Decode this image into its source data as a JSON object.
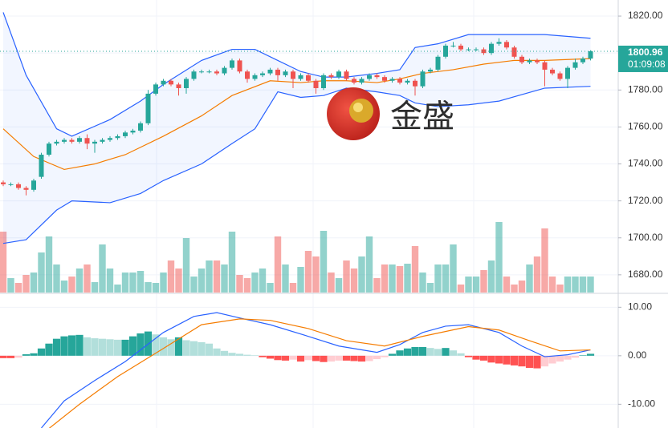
{
  "chart_data": {
    "type": "candlestick",
    "ylim": [
      1670.4,
      1828.7
    ],
    "yticks": [
      {
        "value": 1820,
        "label": "1820.00"
      },
      {
        "value": 1800,
        "label": "1800.00"
      },
      {
        "value": 1780,
        "label": "1780.00"
      },
      {
        "value": 1760,
        "label": "1760.00"
      },
      {
        "value": 1740,
        "label": "1740.00"
      },
      {
        "value": 1720,
        "label": "1720.00"
      },
      {
        "value": 1700,
        "label": "1700.00"
      },
      {
        "value": 1680,
        "label": "1680.00"
      }
    ],
    "grid": true,
    "up_color": "#26a69a",
    "down_color": "#ef5350",
    "open": [
      1730,
      1729,
      1729,
      1727,
      1726,
      1733,
      1745,
      1751,
      1752,
      1753,
      1752,
      1754,
      1751,
      1752,
      1753,
      1754,
      1755,
      1757,
      1758,
      1762,
      1778,
      1783,
      1785,
      1783,
      1781,
      1786,
      1790,
      1790,
      1790,
      1789,
      1792,
      1796,
      1790,
      1786,
      1788,
      1789,
      1791,
      1788,
      1790,
      1786,
      1788,
      1785,
      1781,
      1788,
      1787,
      1790,
      1786,
      1784,
      1786,
      1788,
      1787,
      1785,
      1786,
      1784,
      1785,
      1782,
      1790,
      1791,
      1798,
      1804,
      1804,
      1802,
      1802,
      1802,
      1800,
      1805,
      1806,
      1803,
      1798,
      1795,
      1796,
      1795,
      1791,
      1789,
      1786,
      1792,
      1795,
      1797
    ],
    "high": [
      1731,
      1730,
      1730,
      1728,
      1732,
      1746,
      1752,
      1753,
      1754,
      1754,
      1755,
      1756,
      1753,
      1754,
      1755,
      1756,
      1758,
      1759,
      1763,
      1780,
      1784,
      1786,
      1786,
      1784,
      1787,
      1791,
      1791,
      1791,
      1791,
      1793,
      1797,
      1797,
      1791,
      1789,
      1790,
      1792,
      1792,
      1791,
      1791,
      1789,
      1789,
      1786,
      1789,
      1789,
      1791,
      1791,
      1787,
      1787,
      1789,
      1789,
      1788,
      1787,
      1787,
      1786,
      1786,
      1791,
      1792,
      1799,
      1805,
      1806,
      1805,
      1803,
      1803,
      1803,
      1806,
      1808,
      1807,
      1804,
      1799,
      1797,
      1797,
      1796,
      1792,
      1790,
      1793,
      1797,
      1798,
      1801.5
    ],
    "low": [
      1728,
      1728,
      1726,
      1723,
      1725,
      1732,
      1744,
      1750,
      1751,
      1751,
      1751,
      1748,
      1746,
      1751,
      1752,
      1753,
      1754,
      1756,
      1757,
      1761,
      1777,
      1782,
      1782,
      1777,
      1778,
      1785,
      1789,
      1789,
      1788,
      1788,
      1791,
      1789,
      1784,
      1785,
      1787,
      1788,
      1785,
      1787,
      1781,
      1785,
      1784,
      1778,
      1780,
      1786,
      1786,
      1785,
      1783,
      1783,
      1785,
      1786,
      1784,
      1784,
      1783,
      1783,
      1777,
      1781,
      1789,
      1790,
      1797,
      1803,
      1801,
      1801,
      1801,
      1799,
      1799,
      1804,
      1802,
      1797,
      1794,
      1794,
      1794,
      1782,
      1788,
      1785,
      1781,
      1791,
      1794,
      1796
    ],
    "close": [
      1729,
      1729,
      1727,
      1726,
      1731,
      1745,
      1751,
      1752,
      1753,
      1752,
      1754,
      1751,
      1752,
      1753,
      1754,
      1755,
      1757,
      1758,
      1762,
      1778,
      1783,
      1785,
      1783,
      1781,
      1786,
      1790,
      1790,
      1790,
      1789,
      1792,
      1796,
      1790,
      1786,
      1788,
      1789,
      1791,
      1788,
      1790,
      1786,
      1788,
      1785,
      1781,
      1788,
      1787,
      1790,
      1786,
      1784,
      1786,
      1788,
      1787,
      1785,
      1786,
      1784,
      1785,
      1782,
      1790,
      1791,
      1798,
      1804,
      1804,
      1802,
      1802,
      1802,
      1800,
      1805,
      1806,
      1803,
      1798,
      1795,
      1796,
      1795,
      1791,
      1789,
      1786,
      1792,
      1795,
      1797,
      1800.96
    ],
    "bollinger": {
      "x": [
        0,
        3,
        7,
        9,
        14,
        18,
        21,
        26,
        30,
        33,
        36,
        39,
        42,
        45,
        49,
        52,
        54,
        57,
        61,
        65,
        71,
        77
      ],
      "upper": [
        1822,
        1788,
        1759,
        1755,
        1764,
        1774,
        1783,
        1796,
        1802,
        1802,
        1796,
        1790,
        1787,
        1787,
        1789,
        1791,
        1803,
        1805,
        1810,
        1810,
        1810,
        1808
      ],
      "lower": [
        1697,
        1699,
        1715,
        1720,
        1719,
        1724,
        1731,
        1740,
        1751,
        1759,
        1779,
        1776,
        1777,
        1781,
        1779,
        1777,
        1773,
        1771,
        1772,
        1774,
        1781,
        1782
      ],
      "middle_x": [
        0,
        4,
        8,
        12,
        16,
        21,
        26,
        30,
        35,
        39,
        42,
        45,
        49,
        52,
        55,
        59,
        63,
        67,
        71,
        77
      ],
      "middle": [
        1759,
        1744,
        1737,
        1740,
        1745,
        1755,
        1766,
        1777,
        1785,
        1784,
        1785,
        1785,
        1784,
        1786,
        1789,
        1791,
        1794,
        1796,
        1796,
        1797
      ],
      "band_color": "#2962ff",
      "middle_color": "#f57c00"
    },
    "last_price": 1800.96,
    "countdown": "01:09:08",
    "volume": {
      "ylim": [
        0,
        100
      ],
      "values": [
        76,
        18,
        12,
        22,
        25,
        50,
        70,
        35,
        15,
        20,
        30,
        35,
        13,
        60,
        30,
        10,
        25,
        25,
        27,
        13,
        12,
        25,
        40,
        30,
        68,
        20,
        30,
        40,
        40,
        35,
        76,
        22,
        18,
        25,
        30,
        12,
        70,
        35,
        12,
        32,
        52,
        45,
        77,
        25,
        18,
        40,
        30,
        45,
        70,
        18,
        35,
        35,
        33,
        36,
        58,
        25,
        12,
        35,
        35,
        60,
        10,
        20,
        20,
        28,
        40,
        88,
        20,
        10,
        15,
        35,
        45,
        80,
        20,
        10,
        20,
        20,
        20,
        20
      ]
    },
    "macd": {
      "ylim": [
        -14.9,
        12.7
      ],
      "yticks": [
        {
          "value": 10,
          "label": "10.00"
        },
        {
          "value": 0,
          "label": "0.00"
        },
        {
          "value": -10,
          "label": "-10.00"
        }
      ],
      "histogram": [
        -0.5,
        -0.5,
        -0.4,
        0.3,
        0.5,
        1.5,
        2.5,
        3.5,
        4,
        4.2,
        4.3,
        3.8,
        3.6,
        3.5,
        3.4,
        3.3,
        3.3,
        4,
        4.6,
        5,
        4.4,
        3.8,
        3.4,
        3.8,
        3.2,
        3,
        2.8,
        2.5,
        1.5,
        1,
        0.6,
        0.4,
        0.2,
        0.1,
        -0.3,
        -0.6,
        -0.9,
        -1,
        -0.8,
        -1.2,
        -0.9,
        -1.1,
        -1.3,
        -1.2,
        -1,
        -1,
        -1.1,
        -1.2,
        -1.1,
        -0.7,
        -0.3,
        0.4,
        1.1,
        1.5,
        1.8,
        1.8,
        1.6,
        1.4,
        1.6,
        1.1,
        0.5,
        -0.3,
        -0.8,
        -1,
        -1.4,
        -1.6,
        -1.8,
        -2,
        -2.2,
        -2.5,
        -2.6,
        -2.2,
        -1.6,
        -1.2,
        -0.8,
        -0.4,
        0.1,
        0.4
      ],
      "macd_x": [
        5,
        8,
        12,
        16,
        21,
        25,
        28,
        31,
        35,
        40,
        44,
        49,
        52,
        55,
        58,
        61,
        65,
        68,
        71,
        74,
        77
      ],
      "macd": [
        -14.9,
        -9.3,
        -5.1,
        -1.2,
        4.8,
        8.1,
        8.9,
        7.8,
        6.4,
        4,
        2,
        0.7,
        2.3,
        4.8,
        6.1,
        6.4,
        4.8,
        2,
        -0.2,
        0.2,
        1.2
      ],
      "signal_x": [
        6,
        10,
        15,
        21,
        26,
        31,
        35,
        40,
        45,
        50,
        55,
        61,
        65,
        69,
        73,
        77
      ],
      "signal": [
        -15,
        -10,
        -4.3,
        1.5,
        6.4,
        7.6,
        7.3,
        5.6,
        3.1,
        2,
        4,
        6,
        5.3,
        3.1,
        1,
        1.2
      ],
      "macd_color": "#2962ff",
      "signal_color": "#f57c00"
    },
    "watermark": "金盛"
  }
}
